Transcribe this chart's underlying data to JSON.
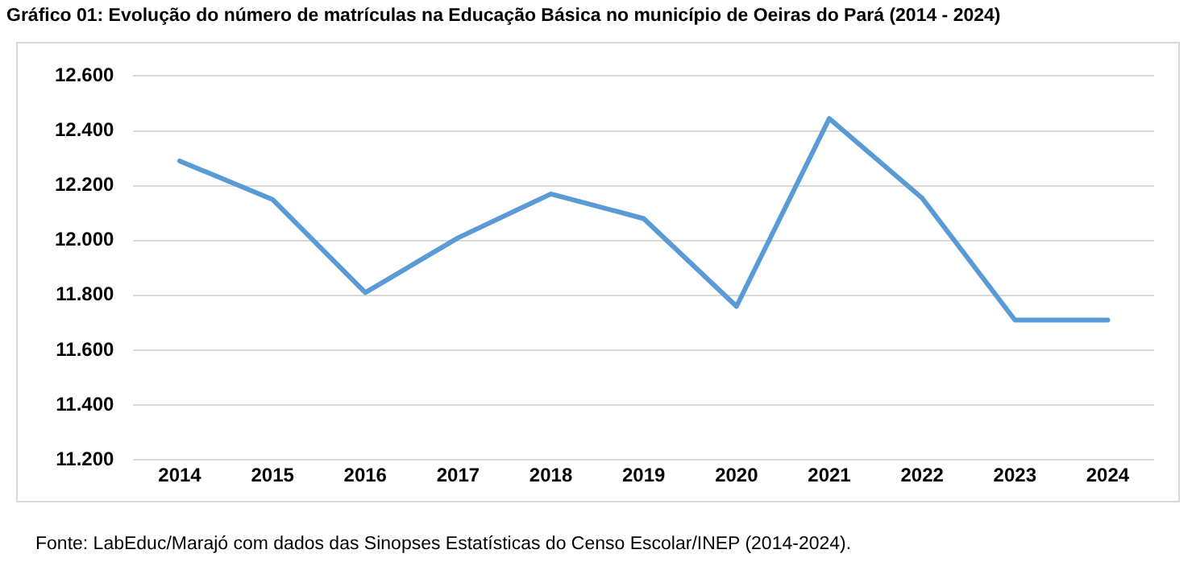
{
  "chart_data": {
    "type": "line",
    "title": "Gráfico 01: Evolução do número de matrículas na Educação Básica no município de Oeiras do Pará (2014 - 2024)",
    "categories": [
      "2014",
      "2015",
      "2016",
      "2017",
      "2018",
      "2019",
      "2020",
      "2021",
      "2022",
      "2023",
      "2024"
    ],
    "series": [
      {
        "color": "#5b9bd5",
        "values": [
          12290,
          12150,
          11810,
          12010,
          12170,
          12080,
          11760,
          12445,
          12155,
          11710,
          11710
        ]
      }
    ],
    "ylim": [
      11200,
      12600
    ],
    "yticks": [
      {
        "value": 11200,
        "label": "11.200"
      },
      {
        "value": 11400,
        "label": "11.400"
      },
      {
        "value": 11600,
        "label": "11.600"
      },
      {
        "value": 11800,
        "label": "11.800"
      },
      {
        "value": 12000,
        "label": "12.000"
      },
      {
        "value": 12200,
        "label": "12.200"
      },
      {
        "value": 12400,
        "label": "12.400"
      },
      {
        "value": 12600,
        "label": "12.600"
      }
    ],
    "grid": "y",
    "legend": false,
    "marker": "none",
    "line_style": "solid",
    "annotations": [
      "Fonte: LabEduc/Marajó com dados das Sinopses Estatísticas do Censo Escolar/INEP (2014-2024)."
    ]
  }
}
